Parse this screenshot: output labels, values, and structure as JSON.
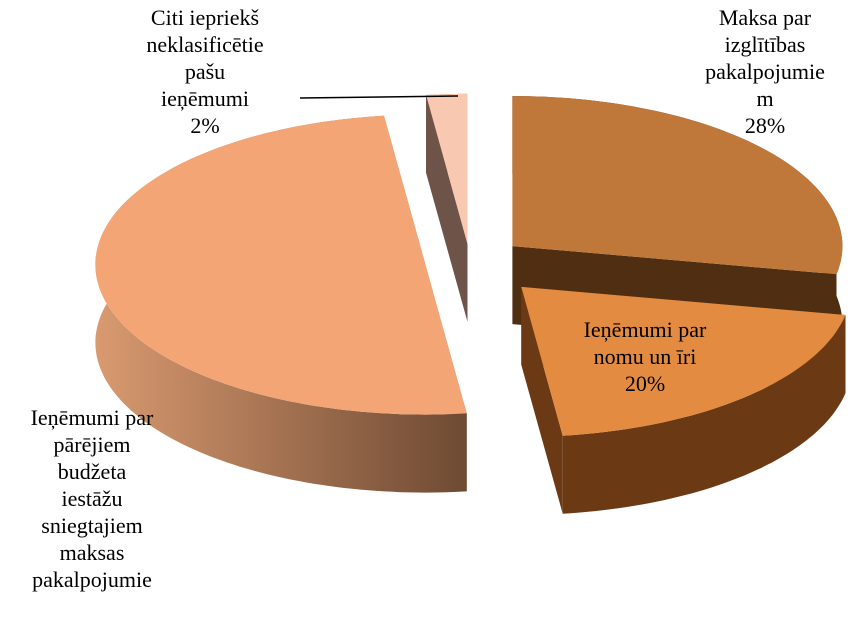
{
  "chart_data": {
    "type": "pie3d",
    "categories": [
      "Maksa par\nizglītības\npakalpojumie\nm",
      "Ieņēmumi par\nnomu un īri",
      "Ieņēmumi par\npārējiem\nbudžeta\niestāžu\nsniegtajiem\nmaksas\npakalpojumie",
      "Citi iepriekš\nneklasificētie\npašu\nieņēmumi"
    ],
    "values": [
      28,
      20,
      50,
      2
    ],
    "value_labels": [
      "28%",
      "20%",
      null,
      "2%"
    ],
    "colors": [
      "#c0773a",
      "#e48b42",
      "#f4a576",
      "#f8c8b0"
    ]
  }
}
